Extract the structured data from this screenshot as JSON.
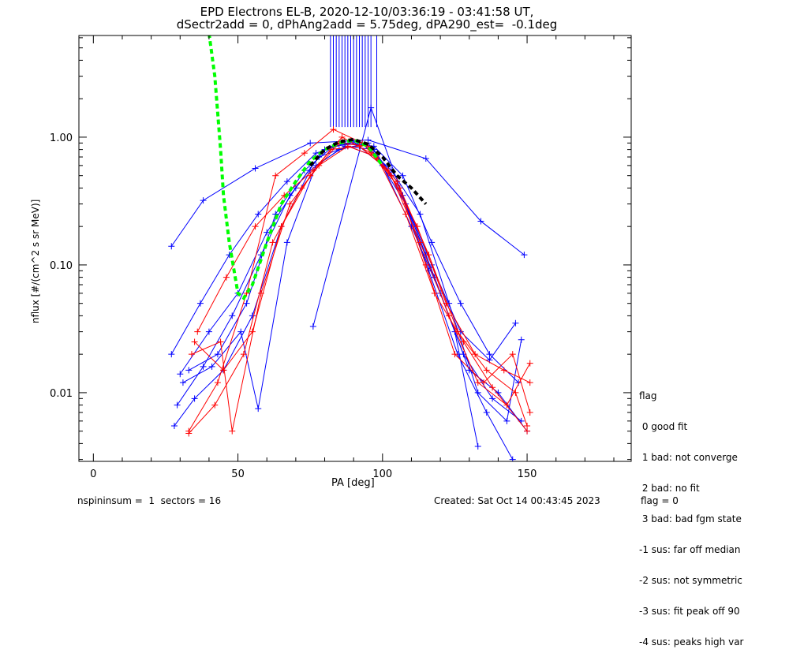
{
  "chart_data": {
    "type": "line",
    "title": [
      "EPD Electrons EL-B, 2020-12-10/03:36:19 - 03:41:58 UT,",
      "dSectr2add = 0, dPhAng2add = 5.75deg, dPA290_est=  -0.1deg"
    ],
    "xlabel": "PA [deg]",
    "ylabel": "nflux [#/(cm^2 s sr MeV)]",
    "xlim": [
      -5,
      186
    ],
    "ylim": [
      0.0029,
      6.25
    ],
    "yscale": "log",
    "x_tick_labels": [
      "0",
      "50",
      "100",
      "150"
    ],
    "x_ticks": [
      0,
      50,
      100,
      150
    ],
    "y_tick_labels": [
      "0.01",
      "0.10",
      "1.00"
    ],
    "y_ticks": [
      0.01,
      0.1,
      1.0
    ],
    "colors": {
      "blue": "#0000ff",
      "red": "#ff0000",
      "green": "#00ff00",
      "black": "#000000"
    },
    "series": [
      {
        "name": "blue-1",
        "color": "blue",
        "points": [
          [
            27,
            0.14
          ],
          [
            38,
            0.32
          ],
          [
            56,
            0.57
          ],
          [
            75,
            0.9
          ],
          [
            95,
            0.95
          ],
          [
            115,
            0.68
          ],
          [
            134,
            0.22
          ],
          [
            149,
            0.12
          ]
        ]
      },
      {
        "name": "blue-2",
        "color": "blue",
        "points": [
          [
            27,
            0.02
          ],
          [
            37,
            0.05
          ],
          [
            47,
            0.12
          ],
          [
            57,
            0.25
          ],
          [
            67,
            0.45
          ],
          [
            77,
            0.75
          ],
          [
            87,
            0.9
          ],
          [
            97,
            0.85
          ],
          [
            107,
            0.5
          ],
          [
            117,
            0.15
          ],
          [
            127,
            0.05
          ],
          [
            137,
            0.02
          ],
          [
            147,
            0.012
          ]
        ]
      },
      {
        "name": "blue-3",
        "color": "blue",
        "points": [
          [
            28,
            0.0055
          ],
          [
            35,
            0.009
          ],
          [
            45,
            0.015
          ],
          [
            55,
            0.04
          ],
          [
            65,
            0.2
          ],
          [
            75,
            0.55
          ],
          [
            85,
            0.8
          ],
          [
            95,
            0.9
          ],
          [
            105,
            0.45
          ],
          [
            115,
            0.12
          ],
          [
            125,
            0.03
          ],
          [
            133,
            0.0038
          ]
        ]
      },
      {
        "name": "blue-4",
        "color": "blue",
        "points": [
          [
            29,
            0.008
          ],
          [
            38,
            0.016
          ],
          [
            48,
            0.04
          ],
          [
            58,
            0.12
          ],
          [
            68,
            0.35
          ],
          [
            78,
            0.7
          ],
          [
            88,
            0.85
          ],
          [
            98,
            0.7
          ],
          [
            108,
            0.3
          ],
          [
            118,
            0.08
          ],
          [
            128,
            0.02
          ],
          [
            138,
            0.009
          ],
          [
            148,
            0.006
          ]
        ]
      },
      {
        "name": "blue-5",
        "color": "blue",
        "points": [
          [
            30,
            0.014
          ],
          [
            40,
            0.03
          ],
          [
            50,
            0.06
          ],
          [
            60,
            0.18
          ],
          [
            70,
            0.4
          ],
          [
            80,
            0.8
          ],
          [
            90,
            0.92
          ],
          [
            100,
            0.6
          ],
          [
            110,
            0.2
          ],
          [
            120,
            0.06
          ],
          [
            130,
            0.015
          ],
          [
            140,
            0.01
          ],
          [
            150,
            0.005
          ]
        ]
      },
      {
        "name": "blue-6",
        "color": "blue",
        "points": [
          [
            31,
            0.012
          ],
          [
            41,
            0.016
          ],
          [
            51,
            0.03
          ],
          [
            57,
            0.0075
          ],
          [
            67,
            0.15
          ],
          [
            77,
            0.6
          ],
          [
            87,
            0.85
          ],
          [
            97,
            0.8
          ],
          [
            107,
            0.35
          ],
          [
            117,
            0.1
          ],
          [
            127,
            0.03
          ],
          [
            137,
            0.018
          ],
          [
            146,
            0.035
          ]
        ]
      },
      {
        "name": "blue-7",
        "color": "blue",
        "points": [
          [
            76,
            0.033
          ],
          [
            96,
            1.7
          ],
          [
            106,
            0.4
          ],
          [
            116,
            0.09
          ],
          [
            126,
            0.02
          ],
          [
            136,
            0.007
          ],
          [
            145,
            0.003
          ]
        ]
      },
      {
        "name": "blue-8",
        "color": "blue",
        "points": [
          [
            33,
            0.015
          ],
          [
            43,
            0.02
          ],
          [
            53,
            0.05
          ],
          [
            63,
            0.25
          ],
          [
            73,
            0.55
          ],
          [
            83,
            0.85
          ],
          [
            93,
            0.9
          ],
          [
            103,
            0.55
          ],
          [
            113,
            0.25
          ],
          [
            123,
            0.05
          ],
          [
            133,
            0.01
          ],
          [
            143,
            0.006
          ],
          [
            148,
            0.026
          ]
        ]
      },
      {
        "name": "red-1",
        "color": "red",
        "points": [
          [
            33,
            0.005
          ],
          [
            43,
            0.012
          ],
          [
            53,
            0.06
          ],
          [
            63,
            0.5
          ],
          [
            73,
            0.75
          ],
          [
            83,
            1.15
          ],
          [
            93,
            0.9
          ],
          [
            103,
            0.5
          ],
          [
            113,
            0.15
          ],
          [
            123,
            0.04
          ],
          [
            133,
            0.012
          ],
          [
            143,
            0.008
          ],
          [
            151,
            0.017
          ]
        ]
      },
      {
        "name": "red-2",
        "color": "red",
        "points": [
          [
            34,
            0.02
          ],
          [
            44,
            0.025
          ],
          [
            48,
            0.005
          ],
          [
            58,
            0.06
          ],
          [
            68,
            0.3
          ],
          [
            78,
            0.6
          ],
          [
            88,
            0.85
          ],
          [
            98,
            0.7
          ],
          [
            108,
            0.25
          ],
          [
            118,
            0.06
          ],
          [
            128,
            0.025
          ],
          [
            138,
            0.011
          ],
          [
            150,
            0.005
          ]
        ]
      },
      {
        "name": "red-3",
        "color": "red",
        "points": [
          [
            35,
            0.025
          ],
          [
            45,
            0.015
          ],
          [
            55,
            0.03
          ],
          [
            65,
            0.2
          ],
          [
            75,
            0.5
          ],
          [
            85,
            0.9
          ],
          [
            95,
            0.85
          ],
          [
            105,
            0.45
          ],
          [
            115,
            0.1
          ],
          [
            125,
            0.02
          ],
          [
            135,
            0.012
          ],
          [
            145,
            0.02
          ],
          [
            151,
            0.007
          ]
        ]
      },
      {
        "name": "red-4",
        "color": "red",
        "points": [
          [
            33,
            0.0048
          ],
          [
            42,
            0.008
          ],
          [
            52,
            0.02
          ],
          [
            62,
            0.15
          ],
          [
            72,
            0.4
          ],
          [
            82,
            0.8
          ],
          [
            92,
            0.85
          ],
          [
            102,
            0.55
          ],
          [
            112,
            0.2
          ],
          [
            122,
            0.05
          ],
          [
            132,
            0.02
          ],
          [
            142,
            0.015
          ],
          [
            151,
            0.012
          ]
        ]
      },
      {
        "name": "red-5",
        "color": "red",
        "points": [
          [
            36,
            0.03
          ],
          [
            46,
            0.08
          ],
          [
            56,
            0.2
          ],
          [
            66,
            0.35
          ],
          [
            76,
            0.55
          ],
          [
            86,
            1.0
          ],
          [
            96,
            0.75
          ],
          [
            106,
            0.4
          ],
          [
            116,
            0.12
          ],
          [
            126,
            0.03
          ],
          [
            136,
            0.015
          ],
          [
            146,
            0.01
          ],
          [
            150,
            0.0055
          ]
        ]
      },
      {
        "name": "green-dashed",
        "color": "green",
        "dashed": true,
        "points": [
          [
            40,
            6.5
          ],
          [
            42,
            3
          ],
          [
            44,
            0.8
          ],
          [
            45,
            0.35
          ],
          [
            47,
            0.15
          ],
          [
            50,
            0.06
          ],
          [
            52,
            0.055
          ],
          [
            55,
            0.07
          ],
          [
            60,
            0.15
          ],
          [
            65,
            0.3
          ],
          [
            70,
            0.45
          ],
          [
            75,
            0.65
          ],
          [
            80,
            0.8
          ],
          [
            85,
            0.9
          ],
          [
            90,
            0.95
          ],
          [
            95,
            0.85
          ],
          [
            100,
            0.6
          ]
        ]
      },
      {
        "name": "black-dashed",
        "color": "black",
        "dashed": true,
        "points": [
          [
            75,
            0.6
          ],
          [
            80,
            0.8
          ],
          [
            85,
            0.92
          ],
          [
            90,
            0.96
          ],
          [
            95,
            0.88
          ],
          [
            100,
            0.7
          ],
          [
            105,
            0.5
          ],
          [
            110,
            0.4
          ],
          [
            115,
            0.3
          ]
        ]
      }
    ],
    "error_bars": {
      "color": "blue",
      "x": [
        82,
        83,
        84,
        85,
        86,
        87,
        88,
        89,
        90,
        91,
        92,
        93,
        94,
        95,
        96,
        98
      ],
      "low": 1.2,
      "high": 6.25
    }
  },
  "legend": {
    "title": "flag",
    "items": [
      " 0 good fit",
      " 1 bad: not converge",
      " 2 bad: no fit",
      " 3 bad: bad fgm state",
      "-1 sus: far off median",
      "-2 sus: not symmetric",
      "-3 sus: fit peak off 90",
      "-4 sus: peaks high var"
    ]
  },
  "footer": {
    "left": "nspininsum =  1  sectors = 16",
    "created": "Created: Sat Oct 14 00:43:45 2023",
    "flag": "flag = 0"
  }
}
